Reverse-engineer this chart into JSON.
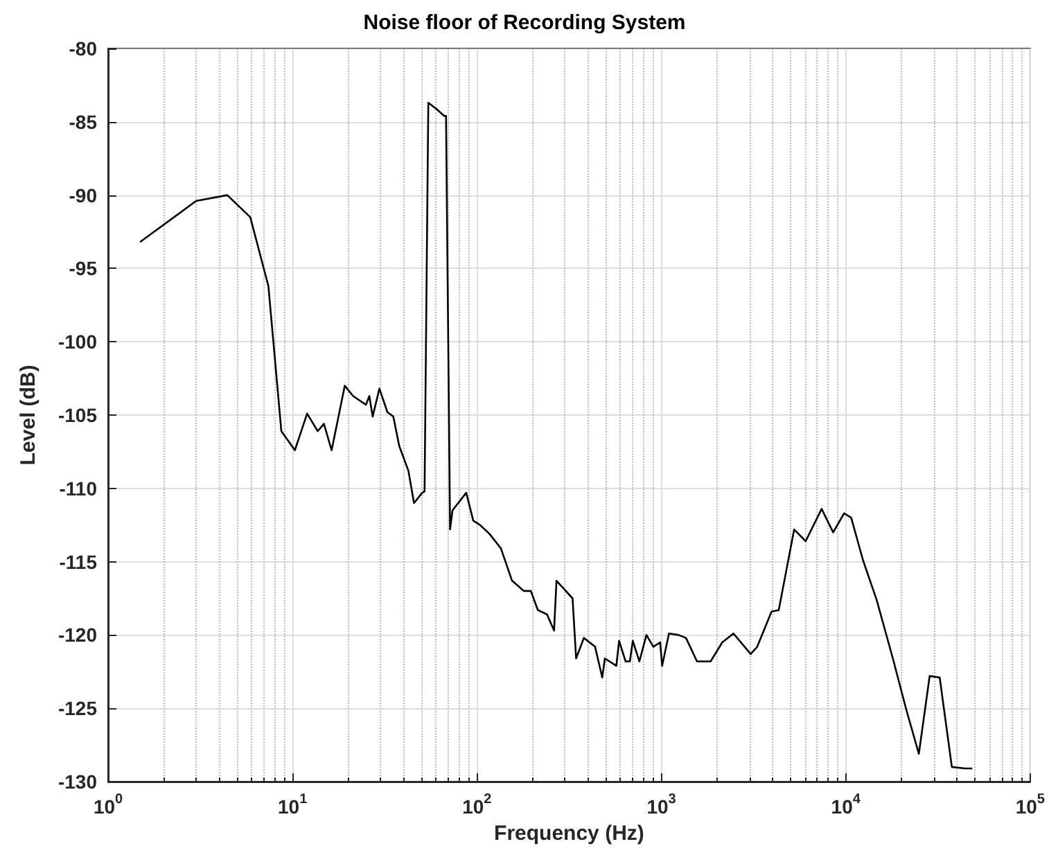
{
  "chart_data": {
    "type": "line",
    "title": "Noise floor of Recording System",
    "xlabel": "Frequency (Hz)",
    "ylabel": "Level (dB)",
    "log": "x",
    "grid": true,
    "marker": "none",
    "line_style": "solid",
    "xlim": [
      1,
      100000
    ],
    "xticks": [
      {
        "value": 1,
        "label": "10$^{0}$"
      },
      {
        "value": 10,
        "label": "10$^{1}$"
      },
      {
        "value": 100,
        "label": "10$^{2}$"
      },
      {
        "value": 1000,
        "label": "10$^{3}$"
      },
      {
        "value": 10000,
        "label": "10$^{4}$"
      },
      {
        "value": 100000,
        "label": "10$^{5}$"
      }
    ],
    "ylim": [
      -130,
      -80
    ],
    "yticks": [
      -130,
      -125,
      -120,
      -115,
      -110,
      -105,
      -100,
      -95,
      -90,
      -85,
      -80
    ],
    "series": [
      {
        "color": "#000000",
        "x": [
          1.49,
          3.0,
          4.43,
          5.9,
          7.4,
          8.7,
          10.3,
          12.0,
          13.7,
          14.8,
          16.3,
          19.2,
          21.3,
          25.0,
          26.1,
          27.2,
          29.6,
          32.7,
          35.2,
          37.9,
          42.5,
          45.6,
          50.5,
          52,
          54.5,
          60,
          66.4,
          68,
          71.5,
          73.7,
          87.5,
          95.5,
          104,
          116.9,
          135,
          155,
          180,
          196,
          214,
          240,
          262,
          270,
          330,
          345,
          380,
          437,
          478,
          494,
          570,
          590,
          640,
          675,
          700,
          760,
          830,
          905,
          985,
          1010,
          1100,
          1240,
          1360,
          1560,
          1850,
          2140,
          2460,
          3050,
          3310,
          3960,
          4330,
          5250,
          6060,
          7400,
          8540,
          9800,
          10700,
          12400,
          14700,
          18000,
          21400,
          24900,
          28500,
          32300,
          37600,
          44500,
          48500
        ],
        "values": [
          -93.2,
          -90.4,
          -90.0,
          -91.5,
          -96.2,
          -106.1,
          -107.4,
          -104.9,
          -106.1,
          -105.6,
          -107.4,
          -103.0,
          -103.7,
          -104.3,
          -103.7,
          -105.1,
          -103.2,
          -104.8,
          -105.1,
          -107.1,
          -108.8,
          -111.0,
          -110.3,
          -110.2,
          -83.7,
          -84.1,
          -84.6,
          -84.6,
          -112.8,
          -111.5,
          -110.3,
          -112.2,
          -112.5,
          -113.1,
          -114.1,
          -116.3,
          -117,
          -117,
          -118.3,
          -118.6,
          -119.7,
          -116.3,
          -117.5,
          -121.6,
          -120.2,
          -120.8,
          -122.9,
          -121.6,
          -122.1,
          -120.4,
          -121.8,
          -121.8,
          -120.4,
          -121.8,
          -120.0,
          -120.8,
          -120.5,
          -122.1,
          -119.9,
          -120.0,
          -120.2,
          -121.8,
          -121.8,
          -120.5,
          -119.9,
          -121.3,
          -120.8,
          -118.4,
          -118.3,
          -112.8,
          -113.6,
          -111.4,
          -113.0,
          -111.7,
          -112.0,
          -114.9,
          -117.6,
          -121.6,
          -125.2,
          -128.1,
          -122.8,
          -122.9,
          -129,
          -129.1,
          -129.1
        ]
      }
    ]
  }
}
